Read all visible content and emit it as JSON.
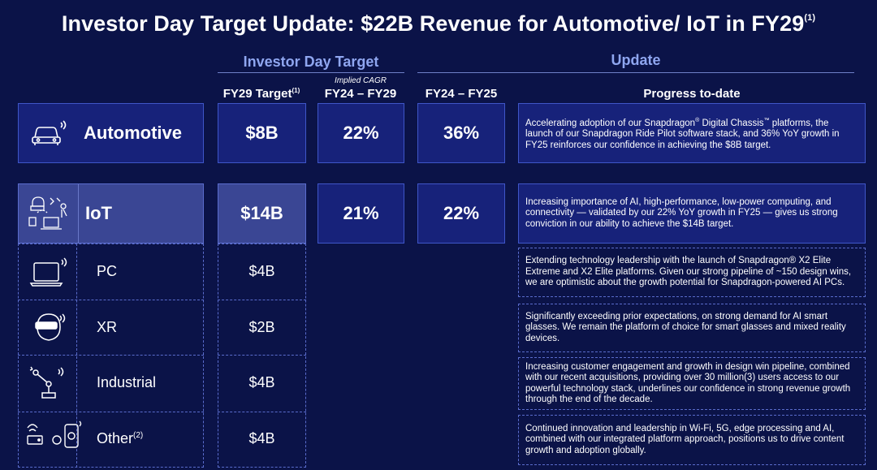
{
  "title": "Investor Day Target Update: $22B Revenue for Automotive/ IoT in FY29",
  "title_footnote": "(1)",
  "groups": {
    "investor_day": "Investor Day Target",
    "update": "Update"
  },
  "columns": {
    "fy29_target": "FY29 Target",
    "fy29_target_note": "(1)",
    "implied_cagr": "Implied CAGR",
    "cagr_range": "FY24 – FY29",
    "growth_range": "FY24 – FY25",
    "progress": "Progress to-date"
  },
  "automotive": {
    "label": "Automotive",
    "target": "$8B",
    "cagr": "22%",
    "growth": "36%",
    "progress_a": "Accelerating adoption of our Snapdragon",
    "progress_b": " Digital Chassis",
    "progress_c": " platforms, the launch of our Snapdragon Ride Pilot software stack, and 36% YoY growth in FY25 reinforces our confidence in achieving the $8B target.",
    "reg_mark": "®",
    "tm_mark": "™"
  },
  "iot": {
    "label": "IoT",
    "target": "$14B",
    "cagr": "21%",
    "growth": "22%",
    "progress": "Increasing importance of AI, high-performance, low-power computing, and connectivity — validated by our 22% YoY growth in FY25 — gives us strong conviction in our ability to achieve the $14B target."
  },
  "sub_segments": [
    {
      "label": "PC",
      "note": "",
      "target": "$4B",
      "progress": "Extending technology leadership with the launch of Snapdragon® X2 Elite Extreme and X2 Elite platforms. Given our strong pipeline of ~150 design wins, we are optimistic about the growth potential for Snapdragon-powered AI PCs."
    },
    {
      "label": "XR",
      "note": "",
      "target": "$2B",
      "progress": "Significantly exceeding prior expectations, on strong demand for AI smart glasses. We remain the platform of choice for smart glasses and mixed reality devices."
    },
    {
      "label": "Industrial",
      "note": "",
      "target": "$4B",
      "progress": "Increasing customer engagement and growth in design win pipeline, combined with our recent acquisitions, providing over 30 million(3) users access to our powerful technology stack, underlines our confidence in strong revenue growth through the end of the decade."
    },
    {
      "label": "Other",
      "note": "(2)",
      "target": "$4B",
      "progress": "Continued innovation and leadership in Wi-Fi, 5G, edge processing and AI, combined with our integrated platform approach, positions us to drive content growth and adoption globally."
    }
  ]
}
